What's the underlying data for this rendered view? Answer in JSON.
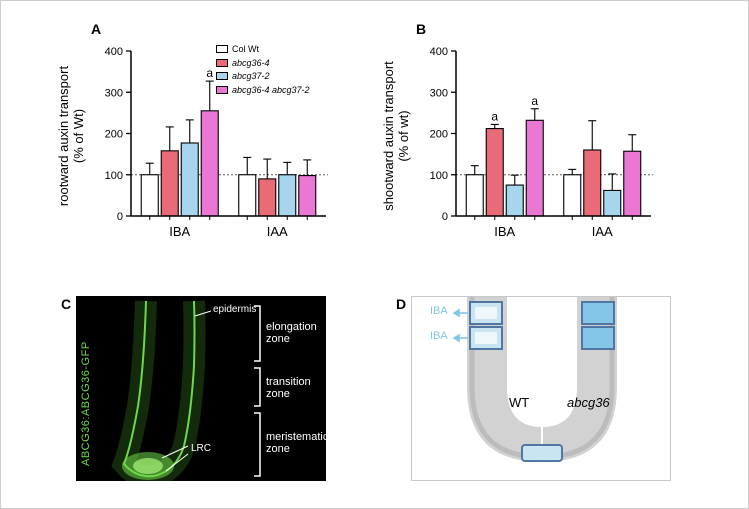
{
  "chartA": {
    "panel_label": "A",
    "y_label_line1": "rootward auxin transport",
    "y_label_line2": "(% of Wt)",
    "ylim": [
      0,
      400
    ],
    "ytick_step": 100,
    "ytick_labels": [
      "0",
      "100",
      "200",
      "300",
      "400"
    ],
    "groups": [
      "IBA",
      "IAA"
    ],
    "series": [
      {
        "key": "col_wt",
        "label": "Col Wt",
        "color": "#ffffff",
        "style": "plain"
      },
      {
        "key": "abcg36",
        "label": "abcg36-4",
        "color": "#e86b77",
        "style": "italic"
      },
      {
        "key": "abcg37",
        "label": "abcg37-2",
        "color": "#a6d5ed",
        "style": "italic"
      },
      {
        "key": "double",
        "label": "abcg36-4 abcg37-2",
        "color": "#e977d3",
        "style": "italic"
      }
    ],
    "values": {
      "IBA": {
        "col_wt": 100,
        "abcg36": 158,
        "abcg37": 177,
        "double": 255
      },
      "IAA": {
        "col_wt": 100,
        "abcg36": 90,
        "abcg37": 100,
        "double": 98
      }
    },
    "errors": {
      "IBA": {
        "col_wt": 28,
        "abcg36": 58,
        "abcg37": 56,
        "double": 72
      },
      "IAA": {
        "col_wt": 42,
        "abcg36": 48,
        "abcg37": 30,
        "double": 38
      }
    },
    "significance": {
      "IBA": {
        "double": "a"
      }
    },
    "ref_line": 100
  },
  "chartB": {
    "panel_label": "B",
    "y_label_line1": "shootward auxin transport",
    "y_label_line2": "(% of wt)",
    "ylim": [
      0,
      400
    ],
    "ytick_step": 100,
    "ytick_labels": [
      "0",
      "100",
      "200",
      "300",
      "400"
    ],
    "groups": [
      "IBA",
      "IAA"
    ],
    "series_keys": [
      "col_wt",
      "abcg36",
      "abcg37",
      "double"
    ],
    "values": {
      "IBA": {
        "col_wt": 100,
        "abcg36": 212,
        "abcg37": 75,
        "double": 232
      },
      "IAA": {
        "col_wt": 100,
        "abcg36": 160,
        "abcg37": 62,
        "double": 157
      }
    },
    "errors": {
      "IBA": {
        "col_wt": 22,
        "abcg36": 10,
        "abcg37": 24,
        "double": 28
      },
      "IAA": {
        "col_wt": 13,
        "abcg36": 71,
        "abcg37": 40,
        "double": 40
      }
    },
    "significance": {
      "IBA": {
        "abcg36": "a",
        "double": "a"
      }
    },
    "ref_line": 100
  },
  "colors": {
    "bar_stroke": "#000000",
    "axis_stroke": "#000000",
    "ref_line": "#5a5a5a",
    "col_wt": "#ffffff",
    "abcg36": "#e86b77",
    "abcg37": "#a6d5ed",
    "double": "#e977d3"
  },
  "panelC": {
    "panel_label": "C",
    "reporter_label": "ABCG36:ABCG36-GFP",
    "label_color": "#6fd84a",
    "annotations": {
      "epidermis": "epidermis",
      "elongation": "elongation\nzone",
      "transition": "transition\nzone",
      "meristematic": "meristematic\nzone",
      "lrc": "LRC"
    },
    "anno_color": "#ffffff",
    "root_stroke": "#6fd84a"
  },
  "panelD": {
    "panel_label": "D",
    "wt_label": "WT",
    "mutant_label": "abcg36",
    "iba_arrow_label": "IBA",
    "iba_text_color": "#83c6e6",
    "root_fill": "#d2d2d2",
    "root_inner": "#bcbcbc",
    "cell_stroke": "#5076a3",
    "cell_fill_light": "#c9e5f2",
    "cell_fill_dark": "#83c6e6",
    "background": "#ffffff"
  }
}
